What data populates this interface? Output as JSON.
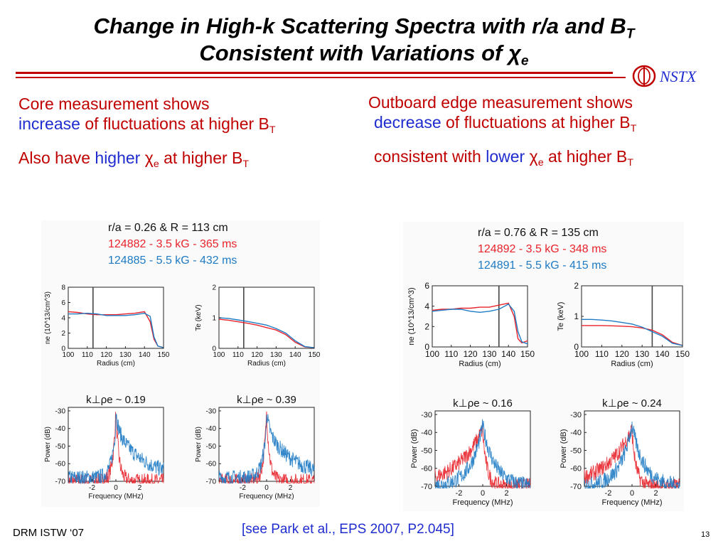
{
  "slide": {
    "title_line1_main": "Change in High-k Scattering Spectra with r/a and B",
    "title_line1_sub": "T",
    "title_line2_main": "Consistent with Variations of ",
    "title_line2_chi": "χ",
    "title_line2_sub": "e",
    "logo_text": "NSTX",
    "page_number": "13"
  },
  "left_text": {
    "line1": "Core measurement shows",
    "line2_blue": "increase",
    "line2_rest": " of fluctuations at higher B",
    "line2_sub": "T",
    "line3_a": "Also have ",
    "line3_blue": "higher",
    "line3_chi": " χ",
    "line3_chi_sub": "e",
    "line3_rest": " at higher B",
    "line3_sub": "T"
  },
  "right_text": {
    "line1": "Outboard edge measurement shows",
    "line2_blue": "decrease",
    "line2_rest": " of fluctuations at higher B",
    "line2_sub": "T",
    "line3_a": "consistent with ",
    "line3_blue": "lower",
    "line3_chi": " χ",
    "line3_chi_sub": "e",
    "line3_rest": " at higher B",
    "line3_sub": "T"
  },
  "left_panel": {
    "header": "r/a = 0.26  &  R = 113 cm",
    "shot_red": "124882  -  3.5 kG  -  365 ms",
    "shot_blue": "124885  -  5.5 kG  -  432 ms",
    "k_label_1": "k⊥ρe ~ 0.19",
    "k_label_2": "k⊥ρe ~ 0.39"
  },
  "right_panel": {
    "header": "r/a = 0.76  &  R = 135 cm",
    "shot_red": "124892  -  3.5 kG  -  348 ms",
    "shot_blue": "124891  -  5.5 kG  -  415 ms",
    "k_label_1": "k⊥ρe ~ 0.16",
    "k_label_2": "k⊥ρe ~ 0.24"
  },
  "colors": {
    "accent_red": "#c00000",
    "accent_blue": "#1f2ccf",
    "series_red": "#e8232b",
    "series_blue": "#1e7bc4"
  },
  "chart_data": [
    {
      "type": "line",
      "id": "L-ne",
      "title": "",
      "xlabel": "Radius (cm)",
      "ylabel": "ne (10^13/cm^3)",
      "xlim": [
        100,
        150
      ],
      "ylim": [
        0,
        8
      ],
      "xticks": [
        100,
        110,
        120,
        130,
        140,
        150
      ],
      "yticks": [
        0,
        2,
        4,
        6,
        8
      ],
      "marker_x": 113,
      "series": [
        {
          "name": "124882",
          "color": "red",
          "x": [
            100,
            105,
            110,
            115,
            120,
            125,
            130,
            135,
            140,
            143,
            145,
            147,
            150
          ],
          "y": [
            4.8,
            4.7,
            4.5,
            4.4,
            4.4,
            4.4,
            4.5,
            4.6,
            4.8,
            3.5,
            1.2,
            0.3,
            0.1
          ]
        },
        {
          "name": "124885",
          "color": "blue",
          "x": [
            100,
            105,
            110,
            115,
            120,
            125,
            130,
            135,
            140,
            143,
            145,
            147,
            150
          ],
          "y": [
            4.5,
            4.5,
            4.6,
            4.5,
            4.3,
            4.3,
            4.3,
            4.4,
            4.6,
            4.2,
            1.5,
            0.3,
            0.1
          ]
        }
      ]
    },
    {
      "type": "line",
      "id": "L-te",
      "title": "",
      "xlabel": "Radius (cm)",
      "ylabel": "Te (keV)",
      "xlim": [
        100,
        150
      ],
      "ylim": [
        0,
        2
      ],
      "xticks": [
        100,
        110,
        120,
        130,
        140,
        150
      ],
      "yticks": [
        0,
        1,
        2
      ],
      "marker_x": 113,
      "series": [
        {
          "name": "124882",
          "color": "red",
          "x": [
            100,
            105,
            110,
            115,
            120,
            125,
            130,
            135,
            140,
            145,
            150
          ],
          "y": [
            0.95,
            0.92,
            0.87,
            0.82,
            0.76,
            0.68,
            0.6,
            0.45,
            0.2,
            0.05,
            0.02
          ]
        },
        {
          "name": "124885",
          "color": "blue",
          "x": [
            100,
            105,
            110,
            115,
            120,
            125,
            130,
            135,
            140,
            145,
            150
          ],
          "y": [
            1.0,
            0.98,
            0.93,
            0.88,
            0.82,
            0.76,
            0.65,
            0.5,
            0.25,
            0.06,
            0.02
          ]
        }
      ]
    },
    {
      "type": "line",
      "id": "L-s1",
      "title": "k⊥ρe ~ 0.19",
      "xlabel": "Frequency (MHz)",
      "ylabel": "Power (dB)",
      "xlim": [
        -4,
        4
      ],
      "ylim": [
        -70,
        -28
      ],
      "xticks": [
        -2,
        0,
        2
      ],
      "yticks": [
        -30,
        -40,
        -50,
        -60,
        -70
      ],
      "series": [
        {
          "name": "124882",
          "color": "red",
          "shape": "narrow"
        },
        {
          "name": "124885",
          "color": "blue",
          "shape": "wide-right"
        }
      ]
    },
    {
      "type": "line",
      "id": "L-s2",
      "title": "k⊥ρe ~ 0.39",
      "xlabel": "Frequency (MHz)",
      "ylabel": "Power (dB)",
      "xlim": [
        -4,
        4
      ],
      "ylim": [
        -70,
        -28
      ],
      "xticks": [
        -2,
        0,
        2
      ],
      "yticks": [
        -30,
        -40,
        -50,
        -60,
        -70
      ],
      "series": [
        {
          "name": "124882",
          "color": "red",
          "shape": "narrow"
        },
        {
          "name": "124885",
          "color": "blue",
          "shape": "wide-right"
        }
      ]
    },
    {
      "type": "line",
      "id": "R-ne",
      "title": "",
      "xlabel": "Radius (cm)",
      "ylabel": "ne (10^13/cm^3)",
      "xlim": [
        100,
        150
      ],
      "ylim": [
        0,
        6
      ],
      "xticks": [
        100,
        110,
        120,
        130,
        140,
        150
      ],
      "yticks": [
        0,
        2,
        4,
        6
      ],
      "marker_x": 135,
      "series": [
        {
          "name": "124892",
          "color": "red",
          "x": [
            100,
            105,
            110,
            115,
            120,
            125,
            130,
            135,
            140,
            143,
            145,
            147,
            150
          ],
          "y": [
            3.6,
            3.7,
            3.7,
            3.8,
            3.8,
            3.9,
            3.9,
            4.1,
            4.3,
            3.0,
            0.8,
            0.4,
            0.6
          ]
        },
        {
          "name": "124891",
          "color": "blue",
          "x": [
            100,
            105,
            110,
            115,
            120,
            125,
            130,
            135,
            140,
            143,
            145,
            147,
            150
          ],
          "y": [
            3.5,
            3.6,
            3.7,
            3.7,
            3.5,
            3.4,
            3.5,
            3.7,
            4.2,
            3.5,
            1.5,
            0.5,
            0.3
          ]
        }
      ]
    },
    {
      "type": "line",
      "id": "R-te",
      "title": "",
      "xlabel": "Radius (cm)",
      "ylabel": "Te (keV)",
      "xlim": [
        100,
        150
      ],
      "ylim": [
        0,
        2
      ],
      "xticks": [
        100,
        110,
        120,
        130,
        140,
        150
      ],
      "yticks": [
        0,
        1,
        2
      ],
      "marker_x": 135,
      "series": [
        {
          "name": "124892",
          "color": "red",
          "x": [
            100,
            105,
            110,
            115,
            120,
            125,
            130,
            135,
            140,
            145,
            150
          ],
          "y": [
            0.7,
            0.7,
            0.7,
            0.69,
            0.68,
            0.66,
            0.62,
            0.55,
            0.4,
            0.15,
            0.05
          ]
        },
        {
          "name": "124891",
          "color": "blue",
          "x": [
            100,
            105,
            110,
            115,
            120,
            125,
            130,
            135,
            140,
            145,
            150
          ],
          "y": [
            0.9,
            0.9,
            0.88,
            0.85,
            0.8,
            0.75,
            0.65,
            0.5,
            0.35,
            0.12,
            0.05
          ]
        }
      ]
    },
    {
      "type": "line",
      "id": "R-s1",
      "title": "k⊥ρe ~ 0.16",
      "xlabel": "Frequency (MHz)",
      "ylabel": "Power (dB)",
      "xlim": [
        -4,
        4
      ],
      "ylim": [
        -70,
        -28
      ],
      "xticks": [
        -2,
        0,
        2
      ],
      "yticks": [
        -30,
        -40,
        -50,
        -60,
        -70
      ],
      "series": [
        {
          "name": "124892",
          "color": "red",
          "shape": "wide-left"
        },
        {
          "name": "124891",
          "color": "blue",
          "shape": "medium"
        }
      ]
    },
    {
      "type": "line",
      "id": "R-s2",
      "title": "k⊥ρe ~ 0.24",
      "xlabel": "Frequency (MHz)",
      "ylabel": "Power (dB)",
      "xlim": [
        -4,
        4
      ],
      "ylim": [
        -70,
        -28
      ],
      "xticks": [
        -2,
        0,
        2
      ],
      "yticks": [
        -30,
        -40,
        -50,
        -60,
        -70
      ],
      "series": [
        {
          "name": "124892",
          "color": "red",
          "shape": "wide-left"
        },
        {
          "name": "124891",
          "color": "blue",
          "shape": "medium"
        }
      ]
    }
  ],
  "footer": {
    "left": "DRM ISTW ‘07",
    "center": "[see Park et al., EPS 2007, P2.045]"
  }
}
